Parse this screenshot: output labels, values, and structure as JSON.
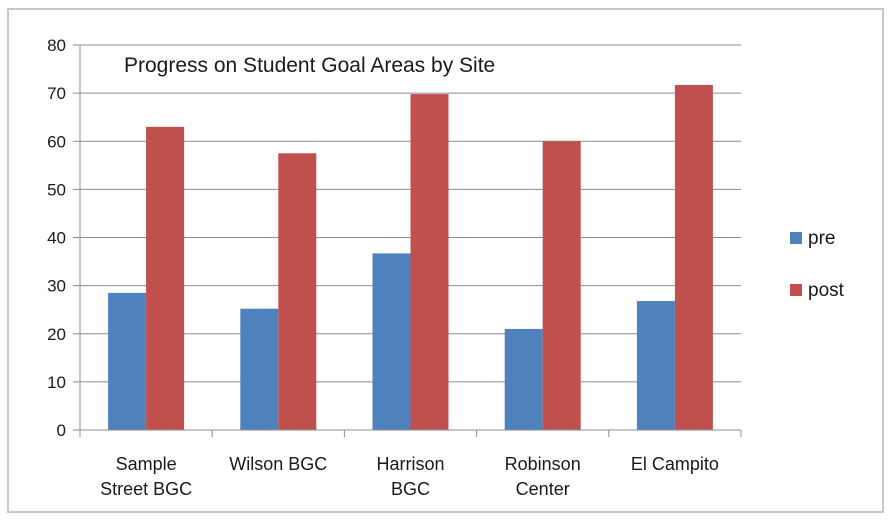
{
  "chart_data": {
    "type": "bar",
    "title": "Progress on Student Goal Areas by Site",
    "xlabel": "",
    "ylabel": "",
    "ylim": [
      0,
      80
    ],
    "yticks": [
      0,
      10,
      20,
      30,
      40,
      50,
      60,
      70,
      80
    ],
    "grid": true,
    "legend_position": "right",
    "categories": [
      [
        "Sample",
        "Street BGC"
      ],
      [
        "Wilson BGC"
      ],
      [
        "Harrison",
        "BGC"
      ],
      [
        "Robinson",
        "Center"
      ],
      [
        "El Campito"
      ]
    ],
    "series": [
      {
        "name": "pre",
        "color": "#4f81bd",
        "values": [
          28.5,
          25.2,
          36.7,
          21.0,
          26.8
        ]
      },
      {
        "name": "post",
        "color": "#c0504d",
        "values": [
          63.0,
          57.5,
          69.8,
          60.0,
          71.7
        ]
      }
    ]
  }
}
